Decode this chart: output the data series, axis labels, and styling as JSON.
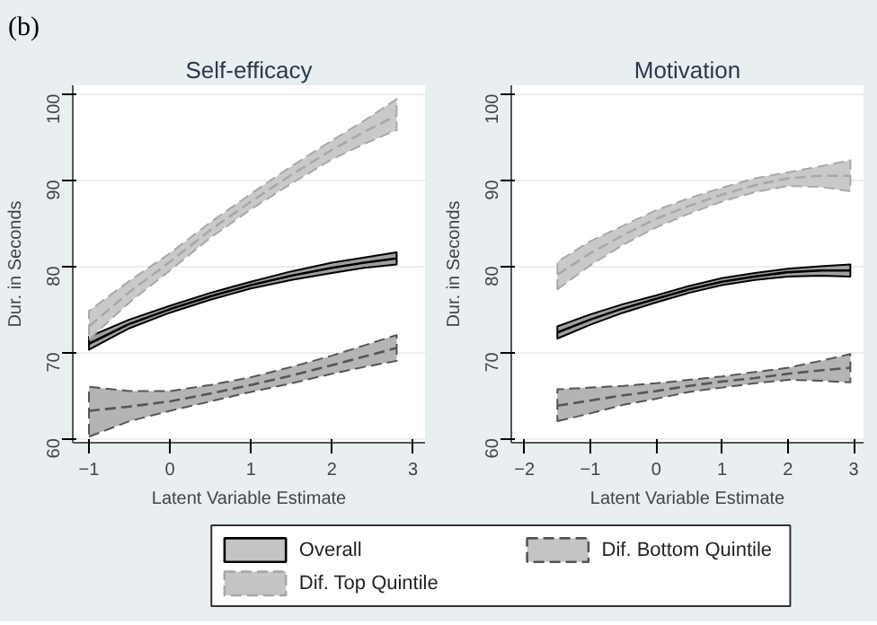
{
  "chart_data": [
    {
      "type": "line",
      "title": "Self-efficacy",
      "xlabel": "Latent Variable Estimate",
      "ylabel": "Dur. in Seconds",
      "annotations": [
        "(b)"
      ],
      "xlim": [
        -1.2,
        3.15
      ],
      "xticks": [
        -1,
        0,
        1,
        2,
        3
      ],
      "ylim": [
        59.5,
        101
      ],
      "yticks": [
        60,
        70,
        80,
        90,
        100
      ],
      "grid": "y",
      "legend": "bottom",
      "series": [
        {
          "name": "Overall",
          "color": "#000000",
          "line_style": "solid",
          "x": [
            -1,
            -0.5,
            0,
            0.5,
            1,
            1.5,
            2,
            2.4,
            2.8
          ],
          "values": [
            71.0,
            73.3,
            75.0,
            76.5,
            77.8,
            78.9,
            79.8,
            80.4,
            80.9
          ],
          "lower": [
            70.3,
            72.8,
            74.6,
            76.1,
            77.4,
            78.4,
            79.2,
            79.8,
            80.2
          ],
          "upper": [
            71.8,
            73.8,
            75.4,
            76.9,
            78.2,
            79.4,
            80.4,
            81.0,
            81.6
          ]
        },
        {
          "name": "Dif. Bottom Quintile",
          "color": "#555555",
          "line_style": "dashed",
          "x": [
            -1,
            -0.5,
            0,
            0.5,
            1,
            1.5,
            2,
            2.4,
            2.8
          ],
          "values": [
            63.2,
            63.7,
            64.3,
            65.2,
            66.2,
            67.3,
            68.5,
            69.5,
            70.5
          ],
          "lower": [
            60.2,
            62.0,
            63.2,
            64.3,
            65.4,
            66.4,
            67.5,
            68.3,
            69.0
          ],
          "upper": [
            66.0,
            65.5,
            65.5,
            66.2,
            67.1,
            68.3,
            69.6,
            70.8,
            72.0
          ]
        },
        {
          "name": "Dif. Top Quintile",
          "color": "#a8a8a8",
          "line_style": "dashed",
          "x": [
            -1,
            -0.5,
            0,
            0.5,
            1,
            1.5,
            2,
            2.4,
            2.8
          ],
          "values": [
            73.0,
            77.0,
            80.5,
            84.2,
            87.5,
            90.6,
            93.5,
            95.6,
            97.5
          ],
          "lower": [
            71.5,
            75.8,
            79.5,
            83.3,
            86.6,
            89.6,
            92.4,
            94.2,
            95.8
          ],
          "upper": [
            74.8,
            78.3,
            81.5,
            85.1,
            88.4,
            91.6,
            94.6,
            96.9,
            99.4
          ]
        }
      ]
    },
    {
      "type": "line",
      "title": "Motivation",
      "xlabel": "Latent Variable Estimate",
      "ylabel": "Dur. in Seconds",
      "xlim": [
        -2.2,
        3.15
      ],
      "xticks": [
        -2,
        -1,
        0,
        1,
        2,
        3
      ],
      "ylim": [
        59.5,
        101
      ],
      "yticks": [
        60,
        70,
        80,
        90,
        100
      ],
      "grid": "y",
      "series": [
        {
          "color": "#000000",
          "line_style": "solid",
          "x": [
            -1.5,
            -1,
            -0.5,
            0,
            0.5,
            1,
            1.5,
            2,
            2.5,
            2.95
          ],
          "values": [
            72.3,
            73.8,
            75.1,
            76.2,
            77.3,
            78.2,
            78.8,
            79.3,
            79.5,
            79.5
          ],
          "lower": [
            71.6,
            73.2,
            74.6,
            75.8,
            76.9,
            77.8,
            78.4,
            78.8,
            78.9,
            78.8
          ],
          "upper": [
            73.0,
            74.4,
            75.6,
            76.6,
            77.7,
            78.6,
            79.2,
            79.7,
            80.0,
            80.2
          ]
        },
        {
          "color": "#555555",
          "line_style": "dashed",
          "x": [
            -1.5,
            -1,
            -0.5,
            0,
            0.5,
            1,
            1.5,
            2,
            2.5,
            2.95
          ],
          "values": [
            63.8,
            64.4,
            65.0,
            65.5,
            66.1,
            66.6,
            67.0,
            67.5,
            67.9,
            68.2
          ],
          "lower": [
            62.0,
            62.9,
            63.9,
            64.6,
            65.4,
            65.9,
            66.4,
            66.8,
            66.7,
            66.5
          ],
          "upper": [
            65.7,
            65.9,
            66.1,
            66.4,
            66.8,
            67.2,
            67.7,
            68.2,
            69.0,
            69.8
          ]
        },
        {
          "color": "#a8a8a8",
          "line_style": "dashed",
          "x": [
            -1.5,
            -1,
            -0.5,
            0,
            0.5,
            1,
            1.5,
            2,
            2.5,
            2.95
          ],
          "values": [
            79.0,
            81.5,
            83.6,
            85.5,
            87.0,
            88.3,
            89.4,
            90.2,
            90.5,
            90.5
          ],
          "lower": [
            77.3,
            80.1,
            82.5,
            84.5,
            86.1,
            87.5,
            88.6,
            89.3,
            89.2,
            88.7
          ],
          "upper": [
            80.5,
            82.9,
            84.7,
            86.5,
            87.9,
            89.1,
            90.2,
            90.9,
            91.6,
            92.3
          ]
        }
      ]
    }
  ]
}
